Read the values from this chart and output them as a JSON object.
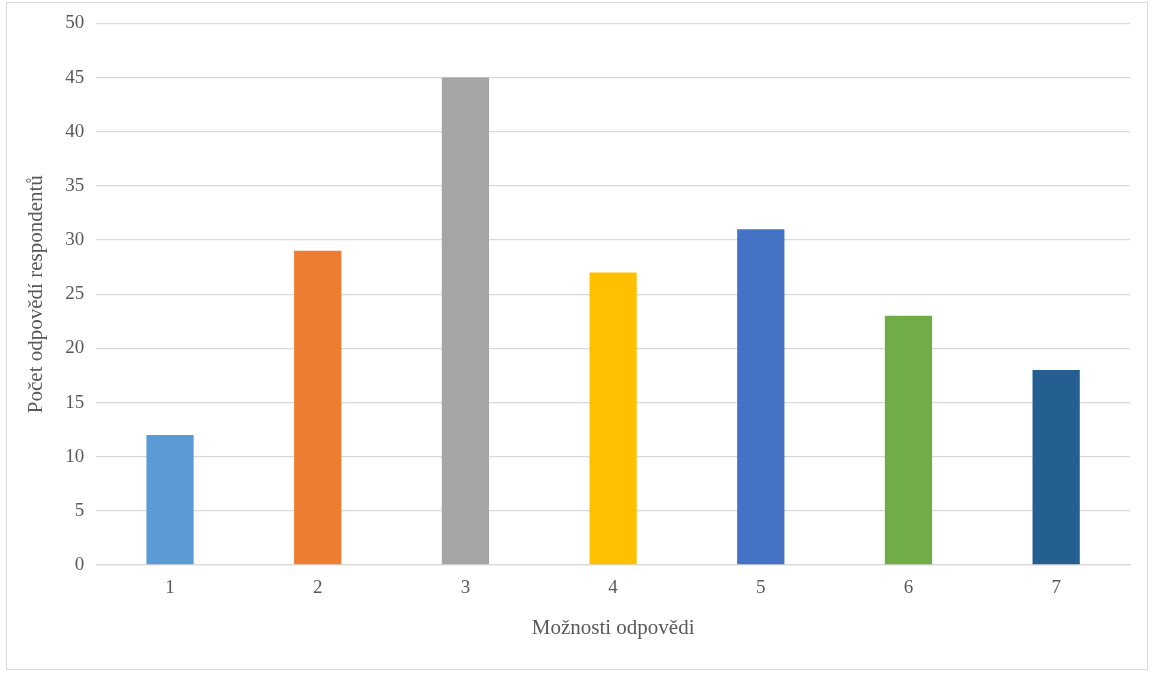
{
  "chart_data": {
    "type": "bar",
    "xlabel": "Možnosti odpovědi",
    "ylabel": "Počet odpovědí respondentů",
    "categories": [
      "1",
      "2",
      "3",
      "4",
      "5",
      "6",
      "7"
    ],
    "values": [
      12,
      29,
      45,
      27,
      31,
      23,
      18
    ],
    "colors": [
      "#5b9bd5",
      "#ed7d31",
      "#a5a5a5",
      "#ffc000",
      "#4472c4",
      "#70ad47",
      "#255e91"
    ],
    "ylim": [
      0,
      50
    ],
    "yticks": [
      0,
      5,
      10,
      15,
      20,
      25,
      30,
      35,
      40,
      45,
      50
    ],
    "grid": "y",
    "legend": false
  }
}
